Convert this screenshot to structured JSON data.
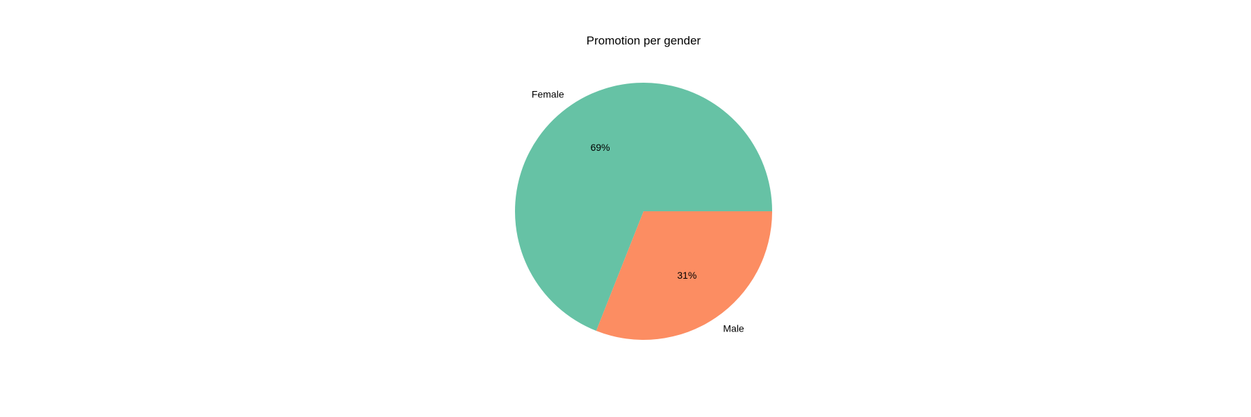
{
  "chart_data": {
    "type": "pie",
    "title": "Promotion per gender",
    "slices": [
      {
        "label": "Female",
        "value": 69,
        "pct_label": "69%",
        "color": "#66c2a5"
      },
      {
        "label": "Male",
        "value": 31,
        "pct_label": "31%",
        "color": "#fc8d62"
      }
    ],
    "start_angle_deg": 0,
    "direction": "counterclockwise",
    "legend": "none"
  }
}
